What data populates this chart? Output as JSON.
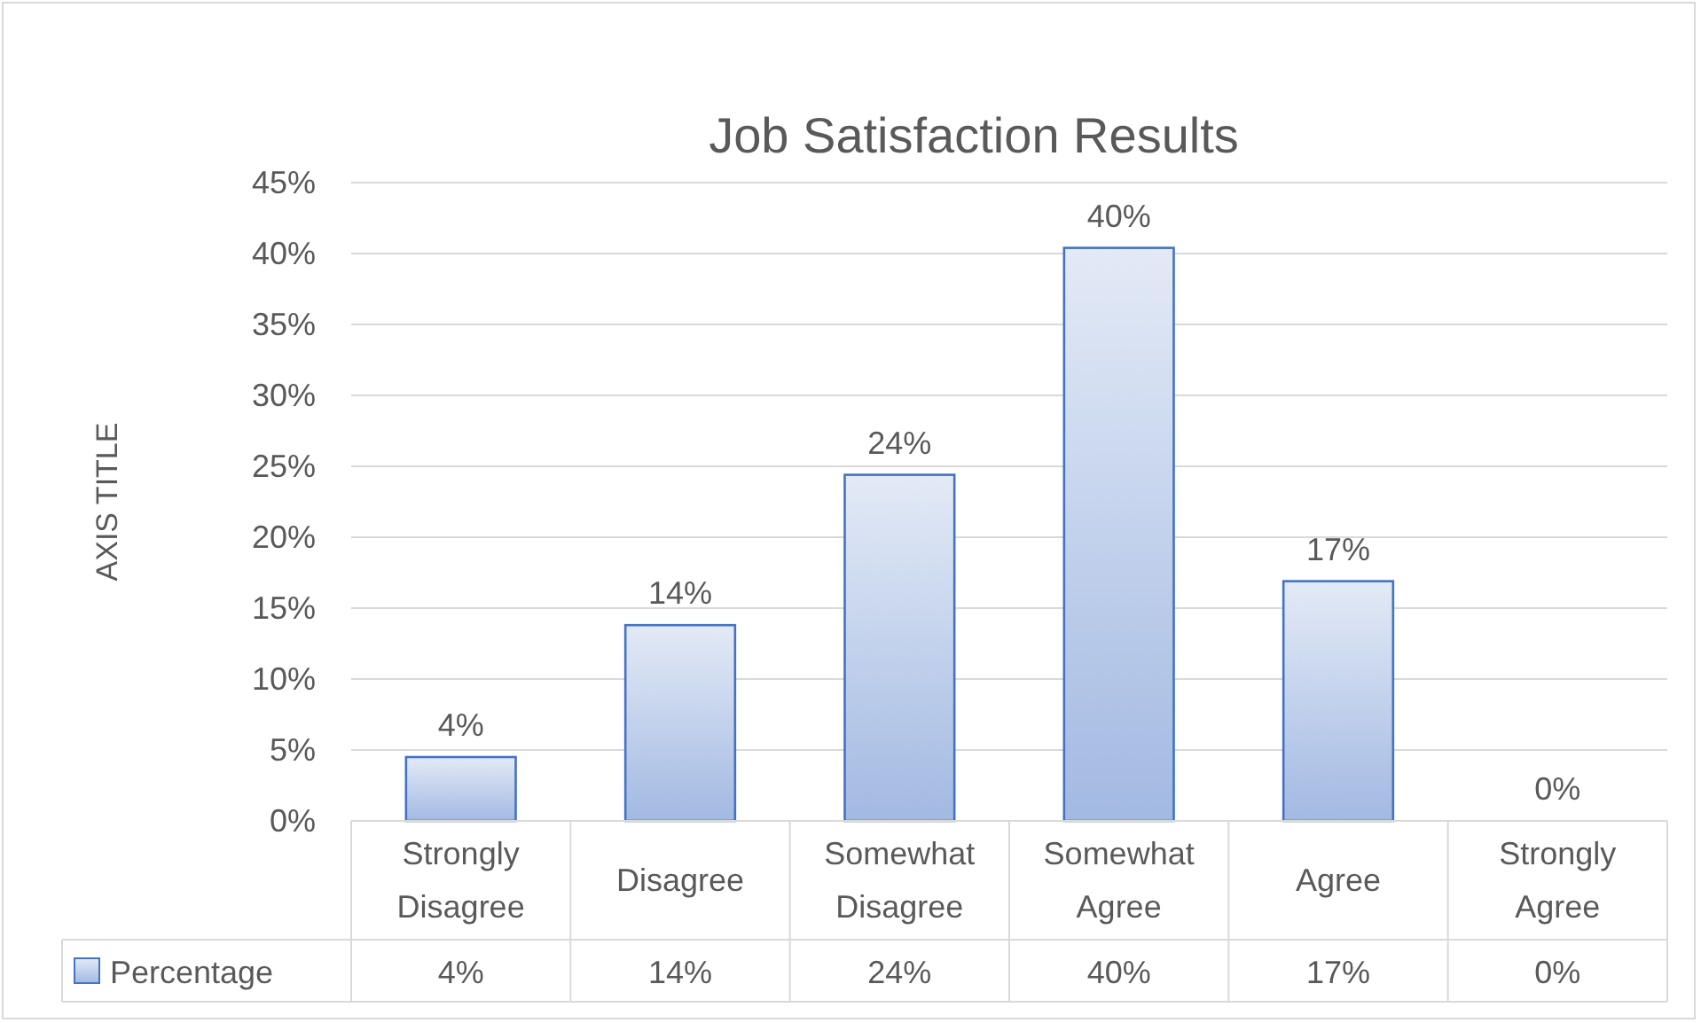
{
  "chart_data": {
    "type": "bar",
    "title": "Job Satisfaction Results",
    "ylabel": "AXIS TITLE",
    "categories": [
      "Strongly Disagree",
      "Disagree",
      "Somewhat Disagree",
      "Somewhat Agree",
      "Agree",
      "Strongly Agree"
    ],
    "series": [
      {
        "name": "Percentage",
        "color": "#4472c4",
        "values": [
          4.5,
          13.8,
          24.4,
          40.4,
          16.9,
          0
        ],
        "value_labels": [
          "4%",
          "14%",
          "24%",
          "40%",
          "17%",
          "0%"
        ]
      }
    ],
    "ylim": [
      0,
      45
    ],
    "yticks": [
      {
        "value": 0,
        "label": "0%"
      },
      {
        "value": 5,
        "label": "5%"
      },
      {
        "value": 10,
        "label": "10%"
      },
      {
        "value": 15,
        "label": "15%"
      },
      {
        "value": 20,
        "label": "20%"
      },
      {
        "value": 25,
        "label": "25%"
      },
      {
        "value": 30,
        "label": "30%"
      },
      {
        "value": 35,
        "label": "35%"
      },
      {
        "value": 40,
        "label": "40%"
      },
      {
        "value": 45,
        "label": "45%"
      }
    ],
    "grid": "y",
    "legend": "bottom"
  }
}
